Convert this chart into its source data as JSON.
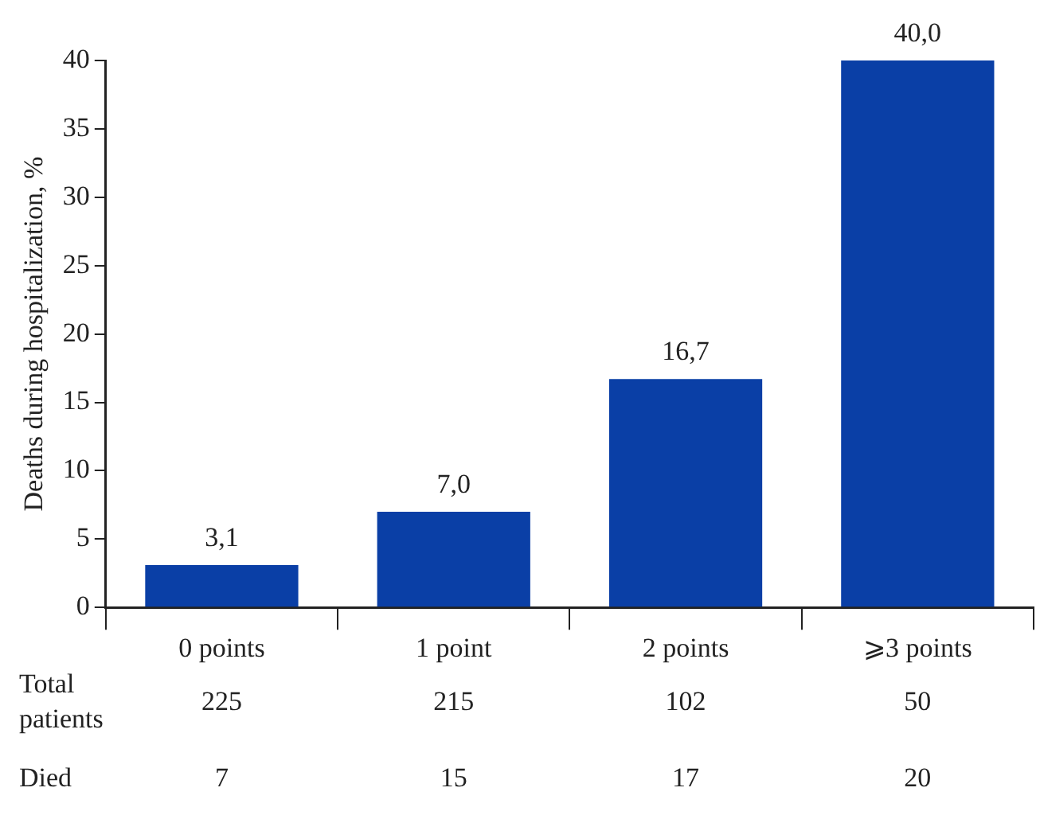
{
  "chart_data": {
    "type": "bar",
    "ylabel": "Deaths during hospitalization, %",
    "categories": [
      "0 points",
      "1 point",
      "2 points",
      "⩾3 points"
    ],
    "values": [
      3.1,
      7.0,
      16.7,
      40.0
    ],
    "color": "#0a3fa6",
    "value_labels": [
      "3,1",
      "7,0",
      "16,7",
      "40,0"
    ],
    "ylim": [
      0,
      40
    ],
    "yticks": [
      0,
      5,
      10,
      15,
      20,
      25,
      30,
      35,
      40
    ],
    "grid": false,
    "legend": false,
    "annotations": [
      "Total\npatients",
      "225",
      "215",
      "102",
      "50",
      "Died",
      "7",
      "15",
      "17",
      "20"
    ]
  }
}
